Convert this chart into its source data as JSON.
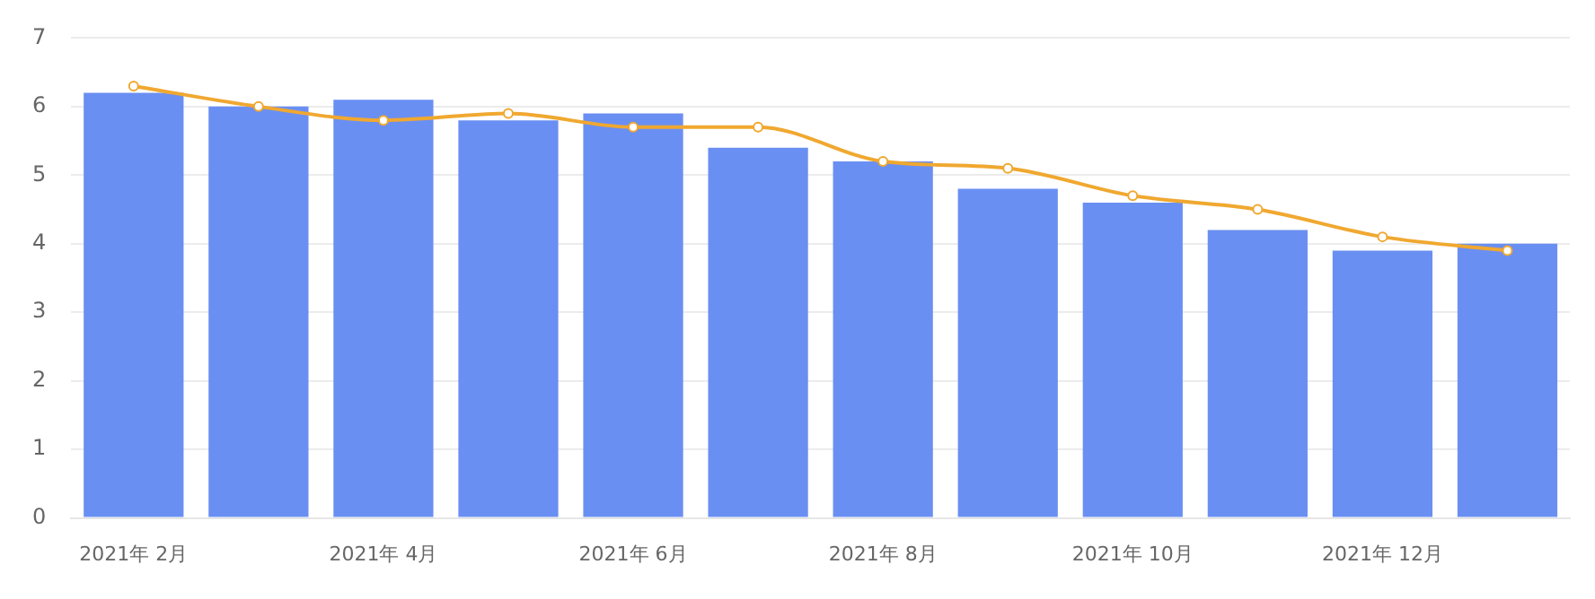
{
  "chart_data": {
    "type": "bar",
    "categories": [
      "2021年 2月",
      null,
      "2021年 4月",
      null,
      "2021年 6月",
      null,
      "2021年 8月",
      null,
      "2021年 10月",
      null,
      "2021年 12月",
      null
    ],
    "series": [
      {
        "color": "#6a8ff2",
        "values": [
          6.2,
          6.0,
          6.1,
          5.8,
          5.9,
          5.4,
          5.2,
          4.8,
          4.6,
          4.2,
          3.9,
          4.0
        ]
      },
      {
        "type": "line",
        "color": "#f0a830",
        "marker": "circle",
        "values": [
          6.3,
          6.0,
          5.8,
          5.9,
          5.7,
          5.7,
          5.2,
          5.1,
          4.7,
          4.5,
          4.1,
          3.9
        ]
      }
    ],
    "ylim": [
      0,
      7
    ],
    "yticks": [
      0,
      1,
      2,
      3,
      4,
      5,
      6,
      7
    ],
    "grid": "y",
    "legend": false
  }
}
